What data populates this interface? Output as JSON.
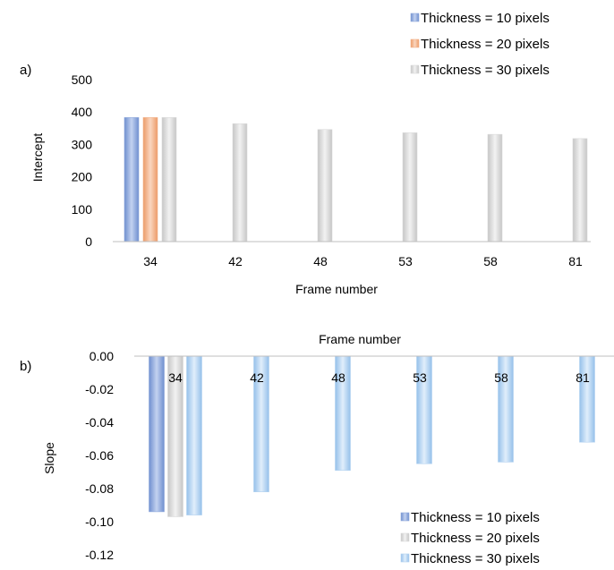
{
  "colors": {
    "blue": "#8fa9dc",
    "orange": "#f2b38c",
    "gray": "#d9d9d9",
    "lightblue": "#b4d3f0"
  },
  "chart_data": [
    {
      "panel_label": "a)",
      "type": "bar",
      "xlabel": "Frame number",
      "ylabel": "Intercept",
      "categories": [
        "34",
        "42",
        "48",
        "53",
        "58",
        "81"
      ],
      "ylim": [
        0,
        500
      ],
      "yticks": [
        "500",
        "400",
        "300",
        "200",
        "100",
        "0"
      ],
      "legend_position": "top-right",
      "series": [
        {
          "name": "Thickness = 10 pixels",
          "color": "blue",
          "values": [
            383,
            null,
            null,
            null,
            null,
            null
          ]
        },
        {
          "name": "Thickness  = 20 pixels",
          "color": "orange",
          "values": [
            383,
            null,
            null,
            null,
            null,
            null
          ]
        },
        {
          "name": "Thickness = 30 pixels",
          "color": "gray",
          "values": [
            383,
            364,
            346,
            336,
            331,
            318
          ]
        }
      ]
    },
    {
      "panel_label": "b)",
      "type": "bar",
      "xlabel": "Frame number",
      "ylabel": "Slope",
      "categories": [
        "34",
        "42",
        "48",
        "53",
        "58",
        "81"
      ],
      "ylim": [
        -0.12,
        0
      ],
      "yticks": [
        "0.00",
        "-0.02",
        "-0.04",
        "-0.06",
        "-0.08",
        "-0.10",
        "-0.12"
      ],
      "legend_position": "bottom-right",
      "series": [
        {
          "name": "Thickness  = 10 pixels",
          "color": "blue",
          "values": [
            -0.094,
            null,
            null,
            null,
            null,
            null
          ]
        },
        {
          "name": "Thickness = 20 pixels",
          "color": "gray",
          "values": [
            -0.097,
            null,
            null,
            null,
            null,
            null
          ]
        },
        {
          "name": "Thickness = 30 pixels",
          "color": "lightblue",
          "values": [
            -0.096,
            -0.082,
            -0.069,
            -0.065,
            -0.064,
            -0.052
          ]
        }
      ]
    }
  ]
}
